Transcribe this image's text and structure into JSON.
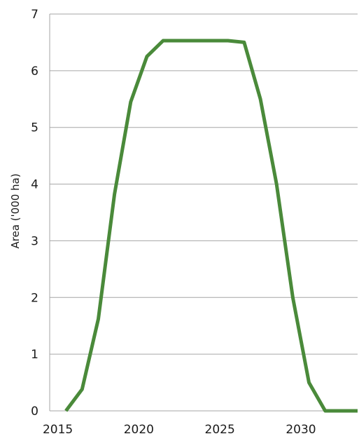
{
  "chart_data": {
    "type": "line",
    "title": "",
    "xlabel": "",
    "ylabel": "Area ('000 ha)",
    "xlim": [
      2015,
      2033
    ],
    "ylim": [
      0,
      7
    ],
    "x_ticks": [
      2015,
      2020,
      2025,
      2030
    ],
    "y_ticks": [
      0,
      1,
      2,
      3,
      4,
      5,
      6,
      7
    ],
    "grid": "horizontal",
    "legend": "none",
    "series": [
      {
        "color": "#4a8a3a",
        "x": [
          2015.5,
          2016.5,
          2017.5,
          2018.5,
          2019.5,
          2020.5,
          2021.5,
          2022.5,
          2023.5,
          2024.5,
          2025.5,
          2026.5,
          2027.5,
          2028.5,
          2029.5,
          2030.5,
          2031.5,
          2032.5,
          2033.5
        ],
        "y": [
          0.0,
          0.38,
          1.62,
          3.82,
          5.45,
          6.25,
          6.53,
          6.53,
          6.53,
          6.53,
          6.53,
          6.5,
          5.5,
          4.0,
          2.0,
          0.5,
          0.0,
          0.0,
          0.0
        ]
      }
    ]
  }
}
